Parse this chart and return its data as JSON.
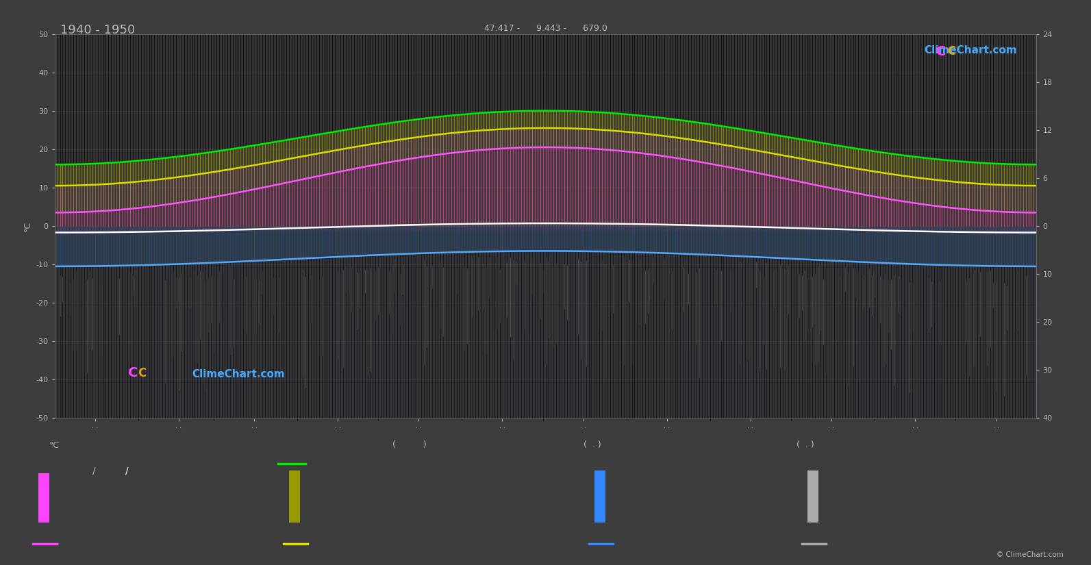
{
  "title": "1940 - 1950",
  "subtitle_coords": "47.417 -      9.443 -      679.0",
  "bg_color": "#3d3d3d",
  "plot_bg_color": "#383838",
  "n_days": 365,
  "green_color": "#00ee00",
  "yellow_color": "#dddd00",
  "pink_color": "#ff55ff",
  "white_color": "#ffffff",
  "blue_color": "#55aaff",
  "grid_color": "#666666",
  "text_color": "#bbbbbb",
  "copyright_text": "© ClimeChart.com",
  "left_yticks": [
    50,
    40,
    30,
    20,
    10,
    0,
    -10,
    -20,
    -30,
    -40,
    -50
  ],
  "right_tick_positions": [
    50,
    37.5,
    25.0,
    12.5,
    0,
    -12.5,
    -25.0,
    -37.5,
    -50
  ],
  "right_tick_labels": [
    "24",
    "18",
    "12",
    "6",
    "0",
    "10",
    "20",
    "30",
    "40"
  ]
}
